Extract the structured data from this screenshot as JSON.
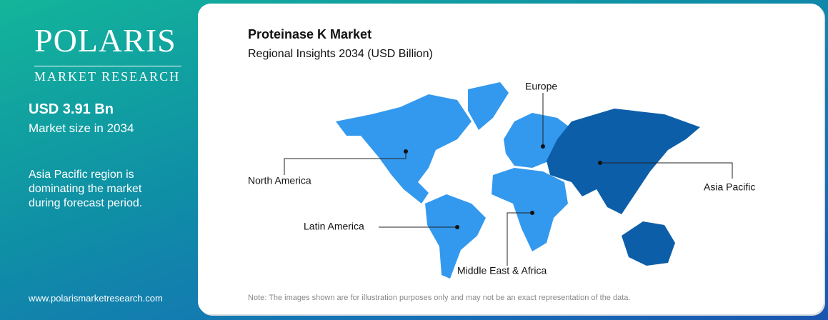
{
  "brand": {
    "name": "POLARIS",
    "tagline": "MARKET RESEARCH"
  },
  "sidebar": {
    "market_size": "USD 3.91 Bn",
    "market_size_label": "Market size in 2034",
    "insight": "Asia Pacific region is dominating the market during forecast period.",
    "website": "www.polarismarketresearch.com"
  },
  "map": {
    "title": "Proteinase K Market",
    "subtitle": "Regional Insights 2034 (USD Billion)",
    "regions": [
      "Europe",
      "North America",
      "Asia Pacific",
      "Latin America",
      "Middle East & Africa"
    ],
    "note": "Note: The images shown are for illustration purposes only and may not be an exact representation of the data."
  }
}
